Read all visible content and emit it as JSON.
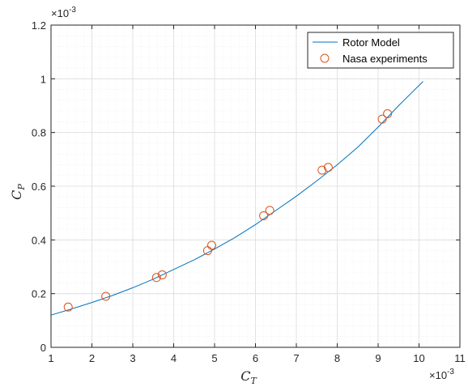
{
  "chart_data": {
    "type": "line",
    "title": "",
    "xlabel": {
      "main": "C",
      "sub": "T"
    },
    "ylabel": {
      "main": "C",
      "sub": "P"
    },
    "x_exponent": "×10",
    "x_exponent_power": "-3",
    "y_exponent": "×10",
    "y_exponent_power": "-3",
    "xlim": [
      1,
      11
    ],
    "ylim": [
      0,
      1.2
    ],
    "xticks": [
      1,
      2,
      3,
      4,
      5,
      6,
      7,
      8,
      9,
      10,
      11
    ],
    "yticks": [
      0,
      0.2,
      0.4,
      0.6,
      0.8,
      1,
      1.2
    ],
    "xtick_labels": [
      "1",
      "2",
      "3",
      "4",
      "5",
      "6",
      "7",
      "8",
      "9",
      "10",
      "11"
    ],
    "ytick_labels": [
      "0",
      "0.2",
      "0.4",
      "0.6",
      "0.8",
      "1",
      "1.2"
    ],
    "grid": true,
    "minor_grid": true,
    "legend_position": "top-right",
    "series": [
      {
        "name": "Rotor Model",
        "kind": "line",
        "color": "#0072BD",
        "x": [
          1.0,
          1.5,
          2.0,
          2.5,
          3.0,
          3.5,
          4.0,
          4.5,
          5.0,
          5.5,
          6.0,
          6.5,
          7.0,
          7.5,
          8.0,
          8.5,
          9.0,
          9.5,
          10.1
        ],
        "y": [
          0.12,
          0.143,
          0.167,
          0.193,
          0.222,
          0.254,
          0.29,
          0.326,
          0.366,
          0.409,
          0.457,
          0.51,
          0.563,
          0.62,
          0.68,
          0.745,
          0.82,
          0.9,
          0.99
        ]
      },
      {
        "name": "Nasa experiments",
        "kind": "scatter",
        "color": "#D95319",
        "x": [
          1.42,
          2.34,
          3.58,
          3.72,
          4.83,
          4.93,
          6.2,
          6.35,
          7.63,
          7.78,
          9.1,
          9.23
        ],
        "y": [
          0.15,
          0.19,
          0.26,
          0.27,
          0.36,
          0.38,
          0.49,
          0.51,
          0.66,
          0.67,
          0.85,
          0.87
        ]
      }
    ]
  }
}
